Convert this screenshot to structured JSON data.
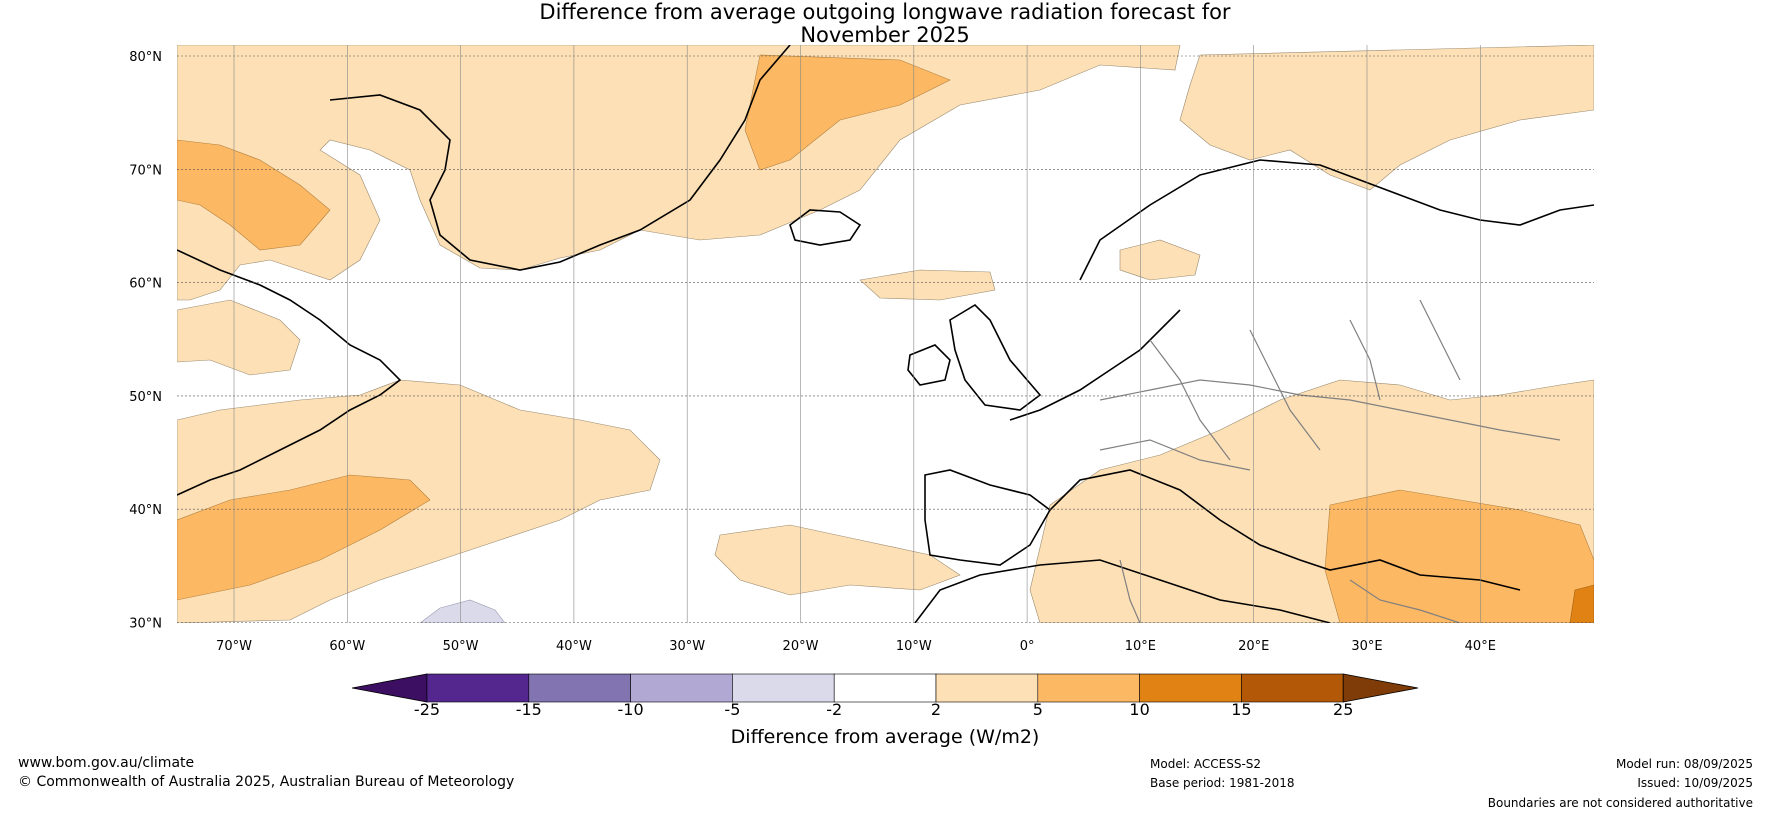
{
  "title_line1": "Difference from average outgoing longwave radiation forecast for",
  "title_line2": "November 2025",
  "lat_labels": [
    "80°N",
    "70°N",
    "60°N",
    "50°N",
    "40°N",
    "30°N"
  ],
  "lon_labels": [
    "70°W",
    "60°W",
    "50°W",
    "40°W",
    "30°W",
    "20°W",
    "10°W",
    "0°",
    "10°E",
    "20°E",
    "30°E",
    "40°E"
  ],
  "colorbar": {
    "ticks": [
      "-25",
      "-15",
      "-10",
      "-5",
      "-2",
      "2",
      "5",
      "10",
      "15",
      "25"
    ],
    "colors": [
      "#3d0f63",
      "#54278f",
      "#8174b0",
      "#b1a9d3",
      "#dadaeb",
      "#ffffff",
      "#fde0b5",
      "#fdb863",
      "#e08214",
      "#b35806",
      "#7f3b08"
    ],
    "label": "Difference from average (W/m2)"
  },
  "footer": {
    "website": "www.bom.gov.au/climate",
    "copyright": "© Commonwealth of Australia 2025, Australian Bureau of Meteorology",
    "model": "Model: ACCESS-S2",
    "base_period": "Base period: 1981-2018",
    "model_run": "Model run: 08/09/2025",
    "issued": "Issued: 10/09/2025",
    "disclaimer": "Boundaries are not considered authoritative"
  }
}
